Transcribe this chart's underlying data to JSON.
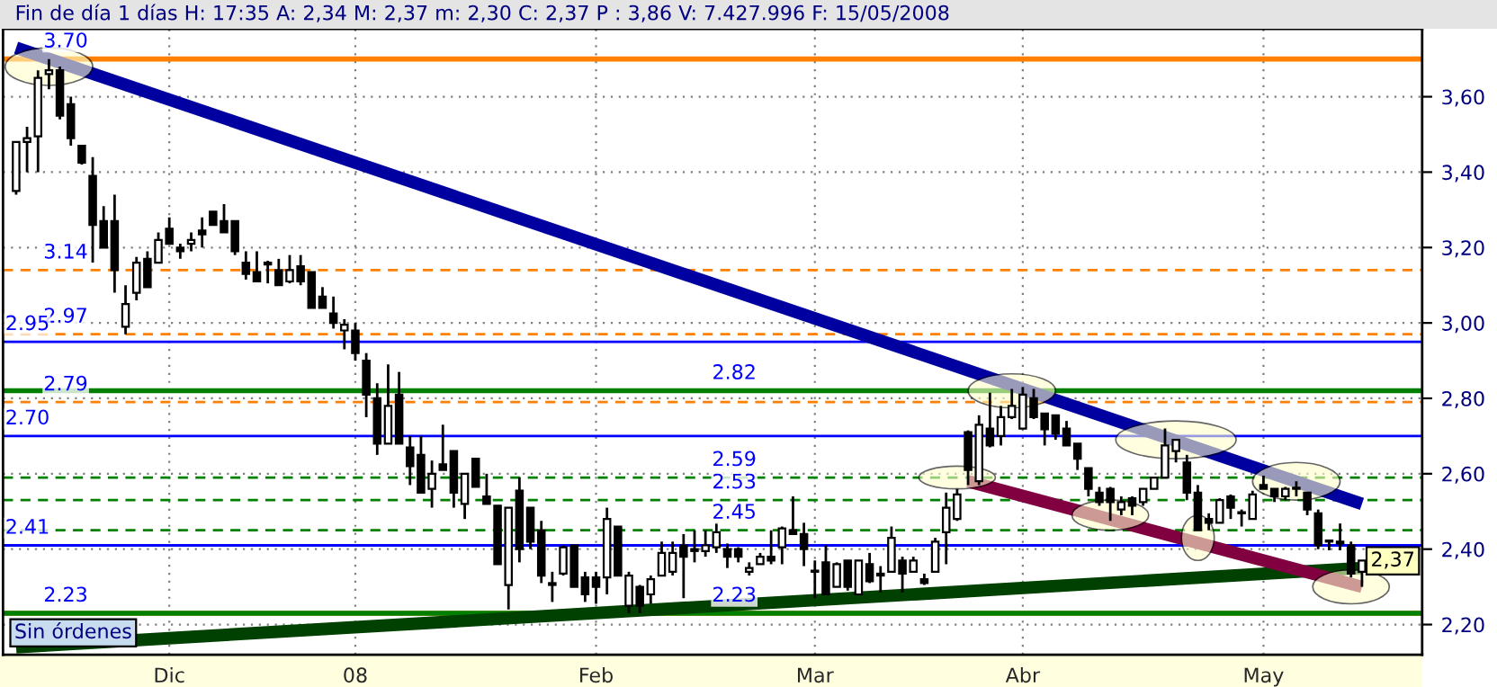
{
  "chart_data": {
    "type": "candlestick",
    "title": "Fin de día 1 días H: 17:35 A: 2,34 M: 2,37 m: 2,30 C: 2,37 P : 3,86 V: 7.427.996 F: 15/05/2008",
    "categories": [
      null,
      null,
      null,
      null,
      null,
      null,
      null,
      null,
      null,
      null,
      null,
      null,
      null,
      null,
      "Dic",
      null,
      null,
      null,
      null,
      null,
      null,
      null,
      null,
      null,
      null,
      null,
      null,
      null,
      null,
      null,
      null,
      "08",
      null,
      null,
      null,
      null,
      null,
      null,
      null,
      null,
      null,
      null,
      null,
      null,
      null,
      null,
      null,
      null,
      null,
      null,
      null,
      null,
      null,
      "Feb",
      null,
      null,
      null,
      null,
      null,
      null,
      null,
      null,
      null,
      null,
      null,
      null,
      null,
      null,
      null,
      null,
      null,
      null,
      null,
      "Mar",
      null,
      null,
      null,
      null,
      null,
      null,
      null,
      null,
      null,
      null,
      null,
      null,
      null,
      null,
      null,
      null,
      null,
      null,
      "Abr",
      null,
      null,
      null,
      null,
      null,
      null,
      null,
      null,
      null,
      null,
      null,
      null,
      null,
      null,
      null,
      null,
      null,
      null,
      null,
      null,
      null,
      "May",
      null,
      null,
      null,
      null,
      null,
      null,
      null,
      null,
      null
    ],
    "ohlc": [
      [
        3.35,
        3.48,
        3.34,
        3.48
      ],
      [
        3.48,
        3.52,
        3.4,
        3.49
      ],
      [
        3.495,
        3.67,
        3.4,
        3.65
      ],
      [
        3.66,
        3.7,
        3.62,
        3.67
      ],
      [
        3.67,
        3.68,
        3.54,
        3.55
      ],
      [
        3.58,
        3.6,
        3.47,
        3.49
      ],
      [
        3.47,
        3.47,
        3.42,
        3.425
      ],
      [
        3.39,
        3.44,
        3.16,
        3.26
      ],
      [
        3.27,
        3.31,
        3.2,
        3.2
      ],
      [
        3.27,
        3.34,
        3.08,
        3.14
      ],
      [
        2.99,
        3.1,
        2.97,
        3.05
      ],
      [
        3.08,
        3.175,
        3.06,
        3.16
      ],
      [
        3.17,
        3.19,
        3.095,
        3.095
      ],
      [
        3.16,
        3.24,
        3.16,
        3.22
      ],
      [
        3.25,
        3.28,
        3.21,
        3.21
      ],
      [
        3.2,
        3.21,
        3.17,
        3.19
      ],
      [
        3.21,
        3.24,
        3.19,
        3.22
      ],
      [
        3.245,
        3.28,
        3.2,
        3.235
      ],
      [
        3.295,
        3.295,
        3.26,
        3.26
      ],
      [
        3.27,
        3.315,
        3.24,
        3.24
      ],
      [
        3.27,
        3.27,
        3.18,
        3.19
      ],
      [
        3.16,
        3.19,
        3.115,
        3.13
      ],
      [
        3.135,
        3.19,
        3.11,
        3.11
      ],
      [
        3.16,
        3.165,
        3.105,
        3.155
      ],
      [
        3.14,
        3.17,
        3.1,
        3.1
      ],
      [
        3.11,
        3.18,
        3.105,
        3.14
      ],
      [
        3.15,
        3.18,
        3.1,
        3.11
      ],
      [
        3.135,
        3.135,
        3.04,
        3.04
      ],
      [
        3.07,
        3.095,
        3.04,
        3.04
      ],
      [
        3.025,
        3.07,
        2.985,
        3.0
      ],
      [
        2.98,
        3.01,
        2.93,
        2.995
      ],
      [
        2.98,
        3.0,
        2.9,
        2.92
      ],
      [
        2.9,
        2.92,
        2.75,
        2.81
      ],
      [
        2.8,
        2.84,
        2.65,
        2.68
      ],
      [
        2.68,
        2.89,
        2.68,
        2.78
      ],
      [
        2.81,
        2.87,
        2.68,
        2.68
      ],
      [
        2.67,
        2.7,
        2.57,
        2.62
      ],
      [
        2.65,
        2.7,
        2.55,
        2.55
      ],
      [
        2.56,
        2.635,
        2.51,
        2.6
      ],
      [
        2.625,
        2.73,
        2.61,
        2.61
      ],
      [
        2.66,
        2.66,
        2.51,
        2.55
      ],
      [
        2.52,
        2.6,
        2.48,
        2.6
      ],
      [
        2.64,
        2.64,
        2.565,
        2.565
      ],
      [
        2.54,
        2.6,
        2.52,
        2.52
      ],
      [
        2.515,
        2.515,
        2.36,
        2.36
      ],
      [
        2.305,
        2.51,
        2.24,
        2.51
      ],
      [
        2.555,
        2.59,
        2.365,
        2.4
      ],
      [
        2.51,
        2.51,
        2.4,
        2.42
      ],
      [
        2.45,
        2.475,
        2.31,
        2.33
      ],
      [
        2.31,
        2.34,
        2.26,
        2.305
      ],
      [
        2.335,
        2.41,
        2.33,
        2.405
      ],
      [
        2.41,
        2.41,
        2.3,
        2.3
      ],
      [
        2.325,
        2.34,
        2.26,
        2.28
      ],
      [
        2.325,
        2.34,
        2.255,
        2.3
      ],
      [
        2.325,
        2.51,
        2.28,
        2.48
      ],
      [
        2.46,
        2.46,
        2.33,
        2.33
      ],
      [
        2.25,
        2.34,
        2.23,
        2.33
      ],
      [
        2.3,
        2.305,
        2.23,
        2.25
      ],
      [
        2.28,
        2.33,
        2.255,
        2.32
      ],
      [
        2.33,
        2.42,
        2.33,
        2.39
      ],
      [
        2.34,
        2.42,
        2.33,
        2.39
      ],
      [
        2.41,
        2.44,
        2.27,
        2.38
      ],
      [
        2.4,
        2.45,
        2.365,
        2.395
      ],
      [
        2.395,
        2.45,
        2.38,
        2.41
      ],
      [
        2.405,
        2.47,
        2.39,
        2.445
      ],
      [
        2.4,
        2.415,
        2.35,
        2.38
      ],
      [
        2.4,
        2.405,
        2.365,
        2.38
      ],
      [
        2.34,
        2.365,
        2.33,
        2.35
      ],
      [
        2.36,
        2.39,
        2.36,
        2.38
      ],
      [
        2.38,
        2.45,
        2.36,
        2.37
      ],
      [
        2.405,
        2.46,
        2.36,
        2.455
      ],
      [
        2.45,
        2.54,
        2.44,
        2.44
      ],
      [
        2.44,
        2.47,
        2.355,
        2.4
      ],
      [
        2.34,
        2.37,
        2.27,
        2.34
      ],
      [
        2.365,
        2.41,
        2.28,
        2.28
      ],
      [
        2.3,
        2.365,
        2.3,
        2.36
      ],
      [
        2.37,
        2.37,
        2.29,
        2.3
      ],
      [
        2.28,
        2.37,
        2.28,
        2.37
      ],
      [
        2.36,
        2.39,
        2.31,
        2.315
      ],
      [
        2.335,
        2.355,
        2.285,
        2.33
      ],
      [
        2.34,
        2.46,
        2.34,
        2.43
      ],
      [
        2.37,
        2.38,
        2.285,
        2.335
      ],
      [
        2.34,
        2.38,
        2.34,
        2.37
      ],
      [
        2.32,
        2.335,
        2.305,
        2.31
      ],
      [
        2.34,
        2.43,
        2.34,
        2.42
      ],
      [
        2.445,
        2.55,
        2.36,
        2.51
      ],
      [
        2.48,
        2.56,
        2.475,
        2.545
      ],
      [
        2.71,
        2.715,
        2.57,
        2.61
      ],
      [
        2.58,
        2.755,
        2.57,
        2.73
      ],
      [
        2.72,
        2.815,
        2.67,
        2.675
      ],
      [
        2.7,
        2.78,
        2.675,
        2.75
      ],
      [
        2.75,
        2.825,
        2.745,
        2.78
      ],
      [
        2.72,
        2.83,
        2.72,
        2.81
      ],
      [
        2.8,
        2.825,
        2.745,
        2.75
      ],
      [
        2.76,
        2.76,
        2.675,
        2.718
      ],
      [
        2.755,
        2.755,
        2.69,
        2.706
      ],
      [
        2.72,
        2.74,
        2.675,
        2.675
      ],
      [
        2.68,
        2.68,
        2.61,
        2.64
      ],
      [
        2.615,
        2.615,
        2.54,
        2.56
      ],
      [
        2.55,
        2.565,
        2.515,
        2.525
      ],
      [
        2.56,
        2.565,
        2.475,
        2.525
      ],
      [
        2.505,
        2.54,
        2.49,
        2.525
      ],
      [
        2.535,
        2.54,
        2.49,
        2.515
      ],
      [
        2.525,
        2.56,
        2.515,
        2.56
      ],
      [
        2.56,
        2.59,
        2.56,
        2.59
      ],
      [
        2.59,
        2.72,
        2.59,
        2.675
      ],
      [
        2.66,
        2.69,
        2.63,
        2.69
      ],
      [
        2.63,
        2.65,
        2.53,
        2.55
      ],
      [
        2.55,
        2.57,
        2.45,
        2.45
      ],
      [
        2.48,
        2.495,
        2.45,
        2.47
      ],
      [
        2.47,
        2.535,
        2.47,
        2.53
      ],
      [
        2.54,
        2.545,
        2.48,
        2.51
      ],
      [
        2.495,
        2.505,
        2.46,
        2.495
      ],
      [
        2.48,
        2.555,
        2.48,
        2.545
      ],
      [
        2.57,
        2.595,
        2.56,
        2.56
      ],
      [
        2.56,
        2.56,
        2.525,
        2.54
      ],
      [
        2.54,
        2.565,
        2.53,
        2.56
      ],
      [
        2.56,
        2.58,
        2.54,
        2.56
      ],
      [
        2.55,
        2.55,
        2.49,
        2.505
      ],
      [
        2.495,
        2.505,
        2.4,
        2.41
      ],
      [
        2.42,
        2.42,
        2.397,
        2.42
      ],
      [
        2.42,
        2.468,
        2.397,
        2.415
      ],
      [
        2.41,
        2.42,
        2.325,
        2.335
      ],
      [
        2.34,
        2.37,
        2.3,
        2.37
      ]
    ],
    "series": [
      {
        "type": "line",
        "color": "#0000a0",
        "values": [
          3.73,
          null,
          null,
          null,
          null,
          null,
          null,
          null,
          null,
          null,
          null,
          null,
          null,
          null,
          null,
          null,
          null,
          null,
          null,
          null,
          null,
          null,
          null,
          null,
          null,
          null,
          null,
          null,
          null,
          null,
          null,
          null,
          null,
          null,
          null,
          null,
          null,
          null,
          null,
          null,
          null,
          null,
          null,
          null,
          null,
          null,
          null,
          null,
          null,
          null,
          null,
          null,
          null,
          null,
          null,
          null,
          null,
          null,
          null,
          null,
          null,
          null,
          null,
          null,
          null,
          null,
          null,
          null,
          null,
          null,
          null,
          null,
          null,
          null,
          null,
          null,
          null,
          null,
          null,
          null,
          null,
          null,
          null,
          null,
          null,
          null,
          null,
          null,
          null,
          null,
          null,
          null,
          null,
          null,
          null,
          null,
          null,
          null,
          null,
          null,
          null,
          null,
          null,
          null,
          null,
          null,
          null,
          null,
          null,
          null,
          null,
          null,
          null,
          null,
          null,
          null,
          null,
          null,
          null,
          null,
          null,
          null,
          null,
          2.52
        ]
      },
      {
        "type": "line",
        "color": "#004000",
        "values": [
          2.14,
          null,
          null,
          null,
          null,
          null,
          null,
          null,
          null,
          null,
          null,
          null,
          null,
          null,
          null,
          null,
          null,
          null,
          null,
          null,
          null,
          null,
          null,
          null,
          null,
          null,
          null,
          null,
          null,
          null,
          null,
          null,
          null,
          null,
          null,
          null,
          null,
          null,
          null,
          null,
          null,
          null,
          null,
          null,
          null,
          null,
          null,
          null,
          null,
          null,
          null,
          null,
          null,
          null,
          null,
          null,
          null,
          null,
          null,
          null,
          null,
          null,
          null,
          null,
          null,
          null,
          null,
          null,
          null,
          null,
          null,
          null,
          null,
          null,
          null,
          null,
          null,
          null,
          null,
          null,
          null,
          null,
          null,
          null,
          null,
          null,
          null,
          null,
          null,
          null,
          null,
          null,
          null,
          null,
          null,
          null,
          null,
          null,
          null,
          null,
          null,
          null,
          null,
          null,
          null,
          null,
          null,
          null,
          null,
          null,
          null,
          null,
          null,
          null,
          null,
          null,
          null,
          null,
          null,
          null,
          null,
          null,
          null,
          2.35
        ]
      },
      {
        "type": "line",
        "color": "#800040",
        "values": [
          null,
          null,
          null,
          null,
          null,
          null,
          null,
          null,
          null,
          null,
          null,
          null,
          null,
          null,
          null,
          null,
          null,
          null,
          null,
          null,
          null,
          null,
          null,
          null,
          null,
          null,
          null,
          null,
          null,
          null,
          null,
          null,
          null,
          null,
          null,
          null,
          null,
          null,
          null,
          null,
          null,
          null,
          null,
          null,
          null,
          null,
          null,
          null,
          null,
          null,
          null,
          null,
          null,
          null,
          null,
          null,
          null,
          null,
          null,
          null,
          null,
          null,
          null,
          null,
          null,
          null,
          null,
          null,
          null,
          null,
          null,
          null,
          null,
          null,
          null,
          null,
          null,
          null,
          null,
          null,
          null,
          null,
          null,
          null,
          null,
          null,
          null,
          2.58,
          null,
          null,
          null,
          null,
          null,
          null,
          null,
          null,
          null,
          null,
          null,
          null,
          null,
          null,
          null,
          null,
          null,
          null,
          null,
          null,
          null,
          null,
          null,
          null,
          null,
          null,
          null,
          null,
          null,
          null,
          null,
          null,
          null,
          null,
          null,
          2.3
        ]
      }
    ],
    "ylim": [
      2.12,
      3.78
    ],
    "yticks": [
      {
        "value": 2.2,
        "label": "2,20"
      },
      {
        "value": 2.4,
        "label": "2,40"
      },
      {
        "value": 2.6,
        "label": "2,60"
      },
      {
        "value": 2.8,
        "label": "2,80"
      },
      {
        "value": 3.0,
        "label": "3,00"
      },
      {
        "value": 3.2,
        "label": "3,20"
      },
      {
        "value": 3.4,
        "label": "3,40"
      },
      {
        "value": 3.6,
        "label": "3,60"
      }
    ],
    "ref_lines": [
      {
        "axis": "y",
        "value": 3.7,
        "label": "3.70",
        "color": "#ff8000",
        "line_style": "solid"
      },
      {
        "axis": "y",
        "value": 3.14,
        "label": "3.14",
        "color": "#ff8000",
        "line_style": "dashed"
      },
      {
        "axis": "y",
        "value": 2.97,
        "label": "2.97",
        "color": "#ff8000",
        "line_style": "dashed"
      },
      {
        "axis": "y",
        "value": 2.79,
        "label": "2.79",
        "color": "#ff8000",
        "line_style": "dashed"
      },
      {
        "axis": "y",
        "value": 2.23,
        "label": "2.23",
        "color": "#ff8000",
        "line_style": "solid"
      },
      {
        "axis": "y",
        "value": 2.95,
        "label": "2.95",
        "color": "#0000ff",
        "line_style": "solid"
      },
      {
        "axis": "y",
        "value": 2.7,
        "label": "2.70",
        "color": "#0000ff",
        "line_style": "solid"
      },
      {
        "axis": "y",
        "value": 2.41,
        "label": "2.41",
        "color": "#0000ff",
        "line_style": "solid"
      },
      {
        "axis": "y",
        "value": 2.82,
        "label": "2.82",
        "color": "#008000",
        "line_style": "solid"
      },
      {
        "axis": "y",
        "value": 2.59,
        "label": "2.59",
        "color": "#008000",
        "line_style": "dashed"
      },
      {
        "axis": "y",
        "value": 2.53,
        "label": "2.53",
        "color": "#008000",
        "line_style": "dashed"
      },
      {
        "axis": "y",
        "value": 2.45,
        "label": "2.45",
        "color": "#008000",
        "line_style": "dashed"
      },
      {
        "axis": "y",
        "value": 2.23,
        "label": "2.23",
        "color": "#008000",
        "line_style": "solid"
      }
    ],
    "annotations": [
      "Sin órdenes",
      "2,37"
    ],
    "grid": true
  }
}
